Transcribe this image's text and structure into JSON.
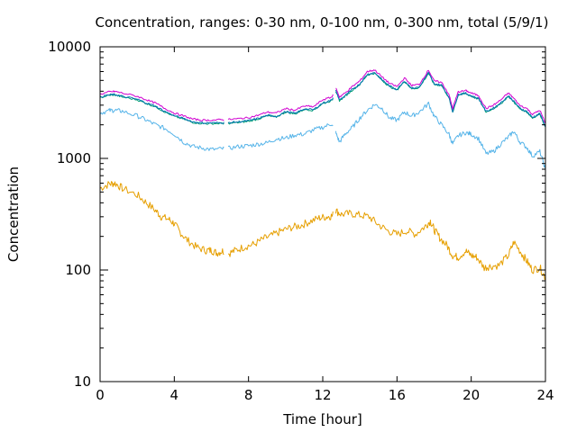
{
  "chart_data": {
    "type": "line",
    "title": "Concentration, ranges: 0-30 nm, 0-100 nm, 0-300 nm, total (5/9/1)",
    "xlabel": "Time [hour]",
    "ylabel": "Concentration",
    "xlim": [
      0,
      24
    ],
    "ylim": [
      10,
      10000
    ],
    "yscale": "log",
    "grid": false,
    "legend": "none",
    "xticks": [
      0,
      4,
      8,
      12,
      16,
      20,
      24
    ],
    "xtick_labels": [
      "0",
      "4",
      "8",
      "12",
      "16",
      "20",
      "24"
    ],
    "yticks": [
      10,
      100,
      1000,
      10000
    ],
    "ytick_labels": [
      "10",
      "100",
      "1000",
      "10000"
    ],
    "gaps": [
      [
        6.7,
        6.9
      ],
      [
        12.55,
        12.7
      ]
    ],
    "series": [
      {
        "color": "#e69f00",
        "points": [
          [
            0,
            540
          ],
          [
            0.5,
            590
          ],
          [
            0.8,
            600
          ],
          [
            1.2,
            540
          ],
          [
            2,
            470
          ],
          [
            2.5,
            400
          ],
          [
            3,
            340
          ],
          [
            3.3,
            300
          ],
          [
            3.7,
            285
          ],
          [
            4,
            260
          ],
          [
            4.3,
            220
          ],
          [
            4.7,
            185
          ],
          [
            5.2,
            160
          ],
          [
            5.7,
            150
          ],
          [
            6,
            150
          ],
          [
            6.3,
            142
          ],
          [
            6.6,
            148
          ],
          [
            6.9,
            140
          ],
          [
            7.3,
            150
          ],
          [
            7.8,
            162
          ],
          [
            8.3,
            170
          ],
          [
            8.8,
            190
          ],
          [
            9.3,
            205
          ],
          [
            9.8,
            225
          ],
          [
            10.3,
            240
          ],
          [
            10.8,
            250
          ],
          [
            11.3,
            272
          ],
          [
            11.8,
            292
          ],
          [
            12.2,
            300
          ],
          [
            12.5,
            305
          ],
          [
            12.7,
            340
          ],
          [
            13,
            315
          ],
          [
            13.5,
            320
          ],
          [
            14,
            310
          ],
          [
            14.5,
            300
          ],
          [
            15,
            255
          ],
          [
            15.5,
            225
          ],
          [
            16,
            208
          ],
          [
            16.5,
            225
          ],
          [
            17,
            210
          ],
          [
            17.5,
            245
          ],
          [
            17.8,
            275
          ],
          [
            18,
            230
          ],
          [
            18.3,
            195
          ],
          [
            18.7,
            165
          ],
          [
            19,
            135
          ],
          [
            19.3,
            130
          ],
          [
            19.7,
            148
          ],
          [
            20,
            135
          ],
          [
            20.3,
            130
          ],
          [
            20.7,
            105
          ],
          [
            21,
            108
          ],
          [
            21.5,
            110
          ],
          [
            22,
            135
          ],
          [
            22.3,
            178
          ],
          [
            22.7,
            142
          ],
          [
            23,
            120
          ],
          [
            23.3,
            100
          ],
          [
            23.7,
            105
          ],
          [
            24,
            85
          ]
        ]
      },
      {
        "color": "#56b4e9",
        "points": [
          [
            0,
            2550
          ],
          [
            0.5,
            2680
          ],
          [
            0.8,
            2700
          ],
          [
            1.2,
            2650
          ],
          [
            2,
            2400
          ],
          [
            2.5,
            2200
          ],
          [
            3,
            2000
          ],
          [
            3.5,
            1850
          ],
          [
            4,
            1650
          ],
          [
            4.5,
            1400
          ],
          [
            5,
            1280
          ],
          [
            5.5,
            1240
          ],
          [
            6,
            1200
          ],
          [
            6.6,
            1220
          ],
          [
            6.9,
            1230
          ],
          [
            7.5,
            1280
          ],
          [
            8,
            1300
          ],
          [
            8.5,
            1340
          ],
          [
            9,
            1380
          ],
          [
            9.5,
            1500
          ],
          [
            10,
            1520
          ],
          [
            10.5,
            1620
          ],
          [
            11,
            1650
          ],
          [
            11.5,
            1800
          ],
          [
            12,
            1900
          ],
          [
            12.5,
            2050
          ],
          [
            12.7,
            1700
          ],
          [
            12.9,
            1400
          ],
          [
            13.2,
            1650
          ],
          [
            13.6,
            1900
          ],
          [
            14,
            2300
          ],
          [
            14.4,
            2700
          ],
          [
            14.8,
            3050
          ],
          [
            15.2,
            2800
          ],
          [
            15.6,
            2300
          ],
          [
            16,
            2200
          ],
          [
            16.4,
            2600
          ],
          [
            16.8,
            2400
          ],
          [
            17.2,
            2600
          ],
          [
            17.7,
            3100
          ],
          [
            18,
            2400
          ],
          [
            18.4,
            2000
          ],
          [
            18.8,
            1650
          ],
          [
            19,
            1350
          ],
          [
            19.3,
            1600
          ],
          [
            19.7,
            1700
          ],
          [
            20,
            1650
          ],
          [
            20.4,
            1500
          ],
          [
            20.8,
            1100
          ],
          [
            21.2,
            1150
          ],
          [
            21.6,
            1350
          ],
          [
            22,
            1550
          ],
          [
            22.3,
            1750
          ],
          [
            22.6,
            1420
          ],
          [
            23,
            1250
          ],
          [
            23.3,
            1050
          ],
          [
            23.7,
            1150
          ],
          [
            24,
            800
          ]
        ]
      },
      {
        "color": "#009e73",
        "points": [
          [
            0,
            3500
          ],
          [
            0.5,
            3680
          ],
          [
            0.8,
            3700
          ],
          [
            1.2,
            3550
          ],
          [
            2,
            3350
          ],
          [
            2.5,
            3100
          ],
          [
            3,
            2900
          ],
          [
            3.5,
            2600
          ],
          [
            4,
            2380
          ],
          [
            4.5,
            2250
          ],
          [
            5,
            2100
          ],
          [
            5.5,
            2050
          ],
          [
            6,
            2050
          ],
          [
            6.6,
            2060
          ],
          [
            6.9,
            2060
          ],
          [
            7.5,
            2100
          ],
          [
            8,
            2150
          ],
          [
            8.5,
            2250
          ],
          [
            9,
            2400
          ],
          [
            9.5,
            2350
          ],
          [
            10,
            2600
          ],
          [
            10.5,
            2500
          ],
          [
            11,
            2750
          ],
          [
            11.5,
            2700
          ],
          [
            12,
            3100
          ],
          [
            12.5,
            3300
          ],
          [
            12.7,
            4000
          ],
          [
            12.9,
            3300
          ],
          [
            13.2,
            3600
          ],
          [
            13.6,
            4100
          ],
          [
            14,
            4600
          ],
          [
            14.4,
            5600
          ],
          [
            14.8,
            5800
          ],
          [
            15.2,
            5000
          ],
          [
            15.6,
            4400
          ],
          [
            16,
            4100
          ],
          [
            16.4,
            4900
          ],
          [
            16.8,
            4200
          ],
          [
            17.2,
            4300
          ],
          [
            17.7,
            5800
          ],
          [
            18,
            4600
          ],
          [
            18.4,
            4500
          ],
          [
            18.8,
            3500
          ],
          [
            19,
            2600
          ],
          [
            19.3,
            3700
          ],
          [
            19.7,
            3800
          ],
          [
            20,
            3600
          ],
          [
            20.4,
            3400
          ],
          [
            20.8,
            2600
          ],
          [
            21.2,
            2800
          ],
          [
            21.6,
            3100
          ],
          [
            22,
            3600
          ],
          [
            22.3,
            3200
          ],
          [
            22.6,
            2800
          ],
          [
            23,
            2600
          ],
          [
            23.3,
            2300
          ],
          [
            23.7,
            2500
          ],
          [
            24,
            1900
          ]
        ]
      },
      {
        "color": "#0072b2",
        "points": [
          [
            0,
            3550
          ],
          [
            0.5,
            3720
          ],
          [
            0.8,
            3740
          ],
          [
            1.2,
            3600
          ],
          [
            2,
            3390
          ],
          [
            2.5,
            3140
          ],
          [
            3,
            2930
          ],
          [
            3.5,
            2630
          ],
          [
            4,
            2410
          ],
          [
            4.5,
            2280
          ],
          [
            5,
            2130
          ],
          [
            5.5,
            2080
          ],
          [
            6,
            2080
          ],
          [
            6.6,
            2090
          ],
          [
            6.9,
            2090
          ],
          [
            7.5,
            2130
          ],
          [
            8,
            2180
          ],
          [
            8.5,
            2280
          ],
          [
            9,
            2430
          ],
          [
            9.5,
            2380
          ],
          [
            10,
            2630
          ],
          [
            10.5,
            2530
          ],
          [
            11,
            2780
          ],
          [
            11.5,
            2730
          ],
          [
            12,
            3140
          ],
          [
            12.5,
            3340
          ],
          [
            12.7,
            4050
          ],
          [
            12.9,
            3340
          ],
          [
            13.2,
            3640
          ],
          [
            13.6,
            4150
          ],
          [
            14,
            4660
          ],
          [
            14.4,
            5670
          ],
          [
            14.8,
            5870
          ],
          [
            15.2,
            5060
          ],
          [
            15.6,
            4450
          ],
          [
            16,
            4150
          ],
          [
            16.4,
            4960
          ],
          [
            16.8,
            4250
          ],
          [
            17.2,
            4350
          ],
          [
            17.7,
            5870
          ],
          [
            18,
            4660
          ],
          [
            18.4,
            4550
          ],
          [
            18.8,
            3540
          ],
          [
            19,
            2630
          ],
          [
            19.3,
            3740
          ],
          [
            19.7,
            3840
          ],
          [
            20,
            3640
          ],
          [
            20.4,
            3440
          ],
          [
            20.8,
            2630
          ],
          [
            21.2,
            2830
          ],
          [
            21.6,
            3140
          ],
          [
            22,
            3640
          ],
          [
            22.3,
            3240
          ],
          [
            22.6,
            2830
          ],
          [
            23,
            2630
          ],
          [
            23.3,
            2330
          ],
          [
            23.7,
            2530
          ],
          [
            24,
            1920
          ]
        ]
      },
      {
        "color": "#d000d0",
        "points": [
          [
            0,
            3750
          ],
          [
            0.5,
            3950
          ],
          [
            0.8,
            3980
          ],
          [
            1.2,
            3850
          ],
          [
            2,
            3600
          ],
          [
            2.5,
            3350
          ],
          [
            3,
            3120
          ],
          [
            3.5,
            2800
          ],
          [
            4,
            2550
          ],
          [
            4.5,
            2400
          ],
          [
            5,
            2250
          ],
          [
            5.5,
            2200
          ],
          [
            6,
            2200
          ],
          [
            6.6,
            2220
          ],
          [
            6.9,
            2230
          ],
          [
            7.5,
            2270
          ],
          [
            8,
            2320
          ],
          [
            8.5,
            2430
          ],
          [
            9,
            2600
          ],
          [
            9.5,
            2550
          ],
          [
            10,
            2800
          ],
          [
            10.5,
            2700
          ],
          [
            11,
            2950
          ],
          [
            11.5,
            2900
          ],
          [
            12,
            3350
          ],
          [
            12.5,
            3550
          ],
          [
            12.7,
            4300
          ],
          [
            12.9,
            3550
          ],
          [
            13.2,
            3850
          ],
          [
            13.6,
            4400
          ],
          [
            14,
            4950
          ],
          [
            14.4,
            6000
          ],
          [
            14.8,
            6200
          ],
          [
            15.2,
            5350
          ],
          [
            15.6,
            4700
          ],
          [
            16,
            4400
          ],
          [
            16.4,
            5250
          ],
          [
            16.8,
            4500
          ],
          [
            17.2,
            4600
          ],
          [
            17.7,
            6200
          ],
          [
            18,
            4950
          ],
          [
            18.4,
            4800
          ],
          [
            18.8,
            3750
          ],
          [
            19,
            2800
          ],
          [
            19.3,
            3950
          ],
          [
            19.7,
            4050
          ],
          [
            20,
            3850
          ],
          [
            20.4,
            3650
          ],
          [
            20.8,
            2800
          ],
          [
            21.2,
            3000
          ],
          [
            21.6,
            3350
          ],
          [
            22,
            3850
          ],
          [
            22.3,
            3450
          ],
          [
            22.6,
            3000
          ],
          [
            23,
            2800
          ],
          [
            23.3,
            2480
          ],
          [
            23.7,
            2700
          ],
          [
            24,
            2050
          ]
        ]
      }
    ]
  }
}
